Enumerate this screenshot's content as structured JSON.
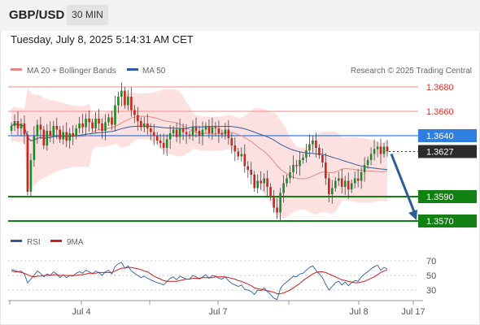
{
  "header": {
    "symbol": "GBP/USD",
    "timeframe": "30 MIN"
  },
  "datetime": "Tuesday, July 8, 2025 5:14:31 AM CET",
  "legend": {
    "ma20": "MA 20 + Bollinger Bands",
    "ma50": "MA 50",
    "credit": "Research © 2025 Trading Central",
    "rsi": "RSI",
    "rsi_ma": "9MA"
  },
  "colors": {
    "ma20": "#e58a82",
    "bollinger_fill": "#fde0e0",
    "ma50": "#2e5c9e",
    "current_line": "#2f7fe0",
    "support": "#138013",
    "resistance": "#f28e85",
    "arrow": "#2a5d97",
    "candle_up": "#1c8a2c",
    "candle_down": "#c8271f"
  },
  "chart_data": [
    {
      "type": "candlestick",
      "series": [
        {
          "name": "MA 20 + Bollinger Bands"
        },
        {
          "name": "MA 50"
        }
      ],
      "x_ticks": [
        "Jul 4",
        "Jul 7",
        "Jul 8",
        "Jul 17"
      ],
      "ylim": [
        1.3555,
        1.369
      ],
      "levels": [
        {
          "label": "1.3680",
          "value": 1.368,
          "kind": "resistance"
        },
        {
          "label": "1.3660",
          "value": 1.366,
          "kind": "resistance"
        },
        {
          "label": "1.3640",
          "value": 1.364,
          "kind": "pivot"
        },
        {
          "label": "1.3627",
          "value": 1.3627,
          "kind": "last"
        },
        {
          "label": "1.3590",
          "value": 1.359,
          "kind": "support"
        },
        {
          "label": "1.3570",
          "value": 1.357,
          "kind": "support"
        }
      ],
      "last_price": 1.3627,
      "forecast_target": 1.357,
      "closes": [
        1.3648,
        1.3652,
        1.3646,
        1.365,
        1.3641,
        1.3594,
        1.362,
        1.364,
        1.3649,
        1.3645,
        1.3632,
        1.3644,
        1.364,
        1.3648,
        1.3645,
        1.3637,
        1.3643,
        1.3636,
        1.3642,
        1.364,
        1.3646,
        1.365,
        1.3647,
        1.3654,
        1.3651,
        1.3646,
        1.3654,
        1.365,
        1.3644,
        1.3651,
        1.3655,
        1.3649,
        1.3665,
        1.3672,
        1.3677,
        1.3665,
        1.3672,
        1.3661,
        1.3657,
        1.3652,
        1.3647,
        1.365,
        1.3646,
        1.3643,
        1.364,
        1.3636,
        1.3634,
        1.363,
        1.3637,
        1.3642,
        1.3645,
        1.3639,
        1.3646,
        1.3643,
        1.3641,
        1.364,
        1.3647,
        1.3644,
        1.364,
        1.3645,
        1.3648,
        1.3642,
        1.3647,
        1.3646,
        1.3642,
        1.3641,
        1.3645,
        1.3638,
        1.3632,
        1.3627,
        1.3623,
        1.3625,
        1.3615,
        1.3612,
        1.3608,
        1.3597,
        1.3603,
        1.3601,
        1.3605,
        1.3598,
        1.359,
        1.3581,
        1.3577,
        1.3593,
        1.3601,
        1.3605,
        1.361,
        1.3616,
        1.3615,
        1.362,
        1.3622,
        1.3628,
        1.3633,
        1.3636,
        1.363,
        1.3624,
        1.3618,
        1.3605,
        1.3592,
        1.3597,
        1.3603,
        1.3605,
        1.3598,
        1.3603,
        1.3596,
        1.3601,
        1.3605,
        1.3603,
        1.361,
        1.3616,
        1.362,
        1.3625,
        1.3629,
        1.3631,
        1.3625,
        1.3631,
        1.3627
      ]
    },
    {
      "type": "line",
      "series": [
        {
          "name": "RSI"
        },
        {
          "name": "9MA"
        }
      ],
      "y_ticks": [
        70,
        50,
        30
      ],
      "ylim": [
        20,
        80
      ],
      "rsi": [
        58,
        57,
        55,
        56,
        52,
        40,
        45,
        50,
        56,
        53,
        48,
        52,
        50,
        55,
        52,
        47,
        51,
        47,
        50,
        49,
        53,
        55,
        53,
        57,
        55,
        52,
        56,
        54,
        50,
        55,
        57,
        52,
        62,
        66,
        68,
        60,
        63,
        56,
        53,
        50,
        47,
        49,
        46,
        44,
        42,
        40,
        39,
        37,
        42,
        46,
        48,
        44,
        49,
        47,
        45,
        45,
        50,
        48,
        45,
        48,
        51,
        46,
        50,
        49,
        46,
        45,
        48,
        43,
        39,
        37,
        35,
        37,
        31,
        30,
        28,
        24,
        30,
        29,
        33,
        28,
        24,
        19,
        17,
        32,
        38,
        41,
        45,
        49,
        48,
        52,
        53,
        57,
        61,
        63,
        57,
        52,
        47,
        38,
        30,
        35,
        40,
        42,
        37,
        41,
        36,
        40,
        43,
        42,
        48,
        52,
        55,
        59,
        62,
        64,
        57,
        61,
        59
      ],
      "rsi_ma": [
        56,
        55,
        55,
        54,
        53,
        51,
        49,
        48,
        49,
        49,
        50,
        50,
        50,
        51,
        51,
        50,
        50,
        50,
        50,
        50,
        50,
        51,
        51,
        52,
        53,
        53,
        53,
        54,
        54,
        54,
        54,
        54,
        56,
        58,
        60,
        60,
        61,
        61,
        60,
        59,
        58,
        56,
        55,
        52,
        49,
        47,
        45,
        43,
        42,
        42,
        42,
        42,
        43,
        44,
        45,
        45,
        46,
        46,
        46,
        47,
        47,
        47,
        47,
        48,
        48,
        48,
        48,
        47,
        46,
        45,
        43,
        42,
        40,
        38,
        36,
        33,
        32,
        31,
        30,
        29,
        28,
        27,
        25,
        25,
        26,
        28,
        30,
        33,
        36,
        39,
        43,
        46,
        49,
        52,
        54,
        55,
        55,
        54,
        52,
        50,
        48,
        46,
        44,
        43,
        42,
        41,
        40,
        40,
        41,
        42,
        44,
        46,
        48,
        51,
        54,
        56,
        58
      ]
    }
  ]
}
